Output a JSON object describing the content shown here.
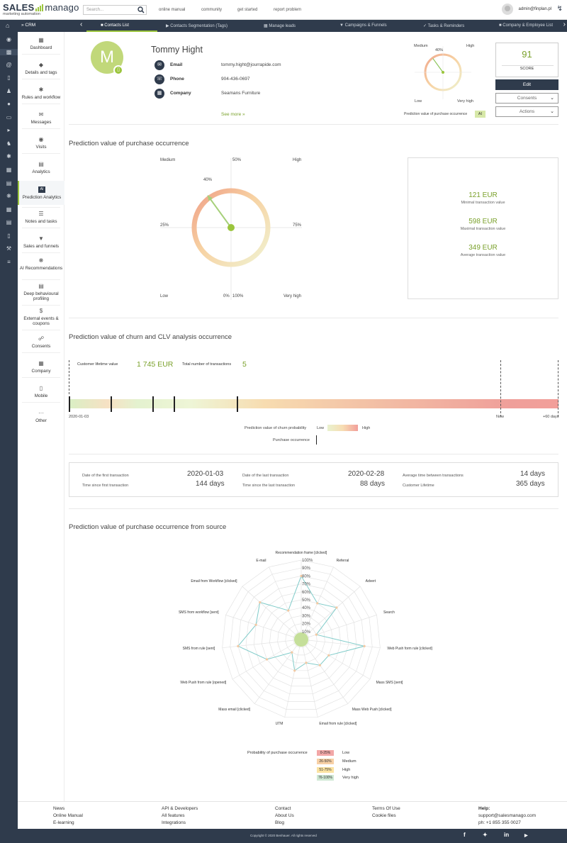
{
  "brand": {
    "logo_sales": "SALES",
    "logo_manago": "manago",
    "tagline": "marketing automation"
  },
  "topnav": {
    "search_placeholder": "Search...",
    "links": [
      "online manual",
      "community",
      "get started",
      "report problem"
    ],
    "user": "admin@finplan.pl"
  },
  "navbar": {
    "section": "CRM",
    "tabs": [
      "Contacts List",
      "Contacts Segmentation (Tags)",
      "Manage leads",
      "Campaigns & Funnels",
      "Tasks & Reminders",
      "Company & Employee List"
    ],
    "active_tab": "Contacts List"
  },
  "submenu": [
    {
      "label": "Dashboard",
      "icon": "dashboard-icon"
    },
    {
      "label": "Details and tags",
      "icon": "tag-icon"
    },
    {
      "label": "Rules and workflow",
      "icon": "gears-icon"
    },
    {
      "label": "Messages",
      "icon": "envelope-icon"
    },
    {
      "label": "Visits",
      "icon": "eye-icon"
    },
    {
      "label": "Analytics",
      "icon": "chart-icon"
    },
    {
      "label": "Prediction Analytics",
      "icon": "ai-icon",
      "active": true
    },
    {
      "label": "Notes and tasks",
      "icon": "notes-icon"
    },
    {
      "label": "Sales and funnels",
      "icon": "funnel-icon"
    },
    {
      "label": "AI Recommendations",
      "icon": "brain-icon"
    },
    {
      "label": "Deep behavioural profiling",
      "icon": "profile-icon"
    },
    {
      "label": "External events & coupons",
      "icon": "dollar-icon"
    },
    {
      "label": "Consents",
      "icon": "handshake-icon"
    },
    {
      "label": "Company",
      "icon": "building-icon"
    },
    {
      "label": "Mobile",
      "icon": "mobile-icon"
    },
    {
      "label": "Other",
      "icon": "dots-icon"
    }
  ],
  "contact": {
    "initial": "M",
    "name": "Tommy Hight",
    "fields": [
      {
        "label": "Email",
        "value": "tommy.hight@jourrapide.com",
        "icon": "envelope-icon"
      },
      {
        "label": "Phone",
        "value": "904-436-0697",
        "icon": "phone-icon"
      },
      {
        "label": "Company",
        "value": "Seamans Furniture",
        "icon": "building-icon"
      }
    ],
    "see_more": "See more »"
  },
  "mini_gauge": {
    "medium": "Medium",
    "high": "High",
    "low": "Low",
    "very_high": "Very high",
    "pct": "40%",
    "value_pct": 40,
    "caption": "Prediction value of purchase occurrence",
    "badge": "AI"
  },
  "score": {
    "value": "91",
    "label": "SCORE",
    "edit": "Edit",
    "consents": "Consents",
    "actions": "Actions"
  },
  "purchase": {
    "title": "Prediction value of purchase occurrence",
    "labels": {
      "medium": "Medium",
      "p50": "50%",
      "high": "High",
      "p25": "25%",
      "p75": "75%",
      "low": "Low",
      "p0": "0%",
      "p100": "100%",
      "very_high": "Very high",
      "pct": "40%"
    },
    "value_pct": 40,
    "tx": [
      {
        "value": "121 EUR",
        "label": "Minimal transaction value"
      },
      {
        "value": "598 EUR",
        "label": "Maximal transaction value"
      },
      {
        "value": "349 EUR",
        "label": "Average transaction value"
      }
    ]
  },
  "churn": {
    "title": "Prediction value of churn and CLV analysis occurrence",
    "clv_label": "Customer lifetime value",
    "clv_value": "1 745 EUR",
    "tx_label": "Total number of transactions",
    "tx_value": "5",
    "start": "2020-01-03",
    "now": "Now",
    "end": "+60 days",
    "legend_prob": "Prediction value of churn probability",
    "low": "Low",
    "high": "High",
    "legend_occ": "Purchase occurrence"
  },
  "stats": [
    {
      "label": "Date of the first transaction",
      "value": "2020-01-03"
    },
    {
      "label": "Time since first transaction",
      "value": "144 days"
    },
    {
      "label": "Date of the last transaction",
      "value": "2020-02-28"
    },
    {
      "label": "Time since the last transaction",
      "value": "88 days"
    },
    {
      "label": "Average time between transactions",
      "value": "14 days"
    },
    {
      "label": "Customer Lifetime",
      "value": "365 days"
    }
  ],
  "source": {
    "title": "Prediction value of purchase occurrence from source",
    "axes": [
      "Recommendation frame [clicked]",
      "Referral",
      "Advert",
      "Search",
      "Web Push form rule [clicked]",
      "Mass SMS [sent]",
      "Mass Web Push [clicked]",
      "Email from rule [clicked]",
      "UTM",
      "Mass email [clicked]",
      "Web Push from rule [opened]",
      "SMS from rule [sent]",
      "SMS from workflow [sent]",
      "Email from Workflow [clicked]",
      "E-mail"
    ],
    "values": [
      80,
      50,
      60,
      20,
      80,
      40,
      40,
      30,
      40,
      20,
      50,
      80,
      60,
      70,
      40
    ],
    "ticks": [
      "100%",
      "90%",
      "80%",
      "70%",
      "60%",
      "50%",
      "40%",
      "30%",
      "20%",
      "10%"
    ],
    "legend_title": "Probability of purchase occurrence",
    "legend": [
      {
        "range": "0-25%",
        "label": "Low",
        "color": "#f2a7a7"
      },
      {
        "range": "26-50%",
        "label": "Medium",
        "color": "#f7d0a6"
      },
      {
        "range": "51-75%",
        "label": "High",
        "color": "#fbe3a2"
      },
      {
        "range": "76-100%",
        "label": "Very high",
        "color": "#cfe8d4"
      }
    ]
  },
  "footer": {
    "col1": [
      "News",
      "Online Manual",
      "E-learning"
    ],
    "col2": [
      "API & Developers",
      "All features",
      "Integrations"
    ],
    "col3": [
      "Contact",
      "About Us",
      "Blog"
    ],
    "col4": [
      "Terms Of Use",
      "Cookie files"
    ],
    "help": "Help:",
    "email": "support@salesmanago.com",
    "phone": "ph: +1 855 355 0027",
    "copyright": "Copyright © 2020 Benhauer. All rights reserved"
  }
}
